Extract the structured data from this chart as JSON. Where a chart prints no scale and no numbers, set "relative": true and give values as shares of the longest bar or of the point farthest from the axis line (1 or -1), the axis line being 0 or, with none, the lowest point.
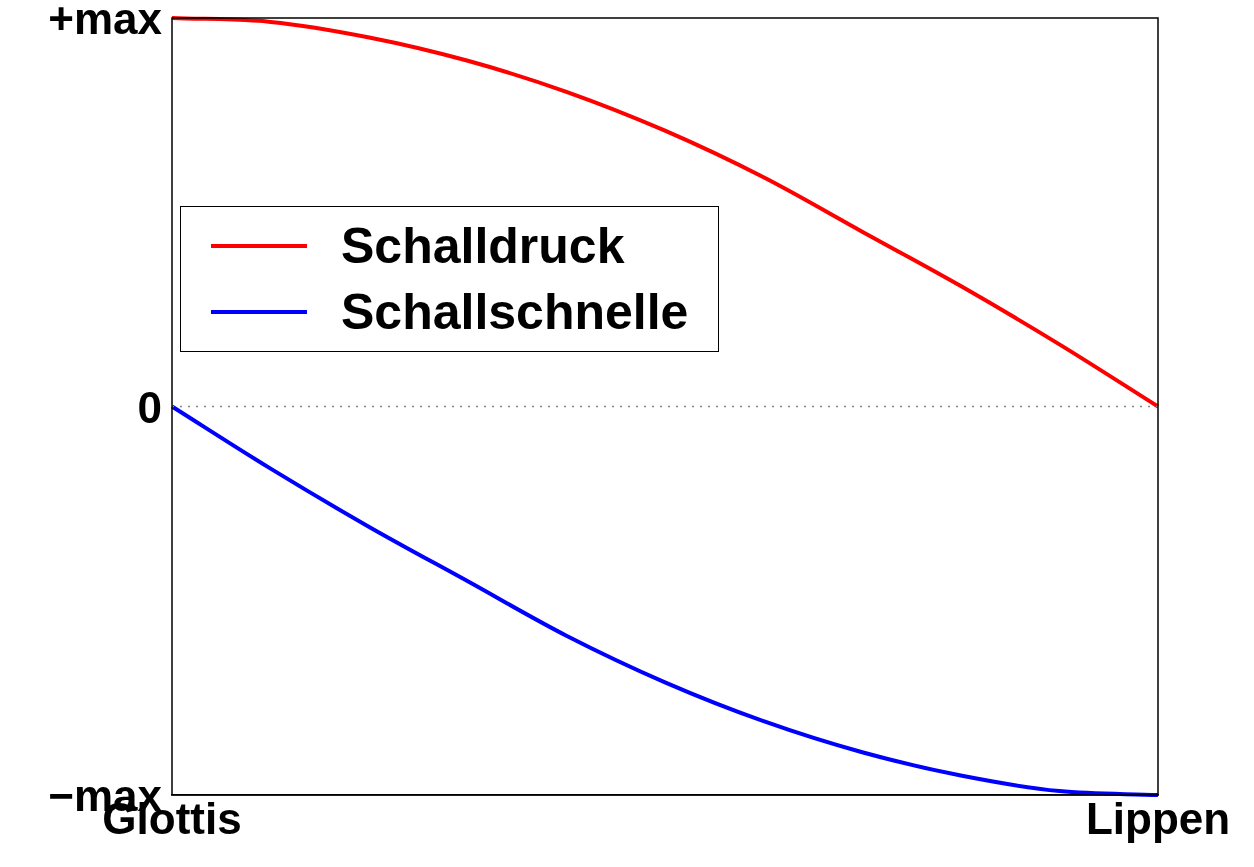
{
  "chart_data": {
    "type": "line",
    "relative": true,
    "categories": [
      "Glottis",
      null,
      null,
      null,
      null,
      null,
      null,
      null,
      null,
      null,
      "Lippen"
    ],
    "annotations": [
      "+max",
      "0",
      "−max"
    ],
    "series": [
      {
        "name": "Schalldruck",
        "color": "#ff0000",
        "values": [
          1,
          0.99,
          0.95,
          0.89,
          0.81,
          0.71,
          0.59,
          0.45,
          0.31,
          0.16,
          0
        ]
      },
      {
        "name": "Schallschnelle",
        "color": "#0000ff",
        "values": [
          0,
          -0.16,
          -0.31,
          -0.45,
          -0.59,
          -0.71,
          -0.81,
          -0.89,
          -0.95,
          -0.99,
          -1
        ]
      }
    ],
    "ref_lines": [
      {
        "axis": "y",
        "value": 0,
        "color": "#888888",
        "line_style": "dotted"
      }
    ],
    "grid": false,
    "legend": "top left",
    "marker": "none",
    "line_style": "solid"
  }
}
